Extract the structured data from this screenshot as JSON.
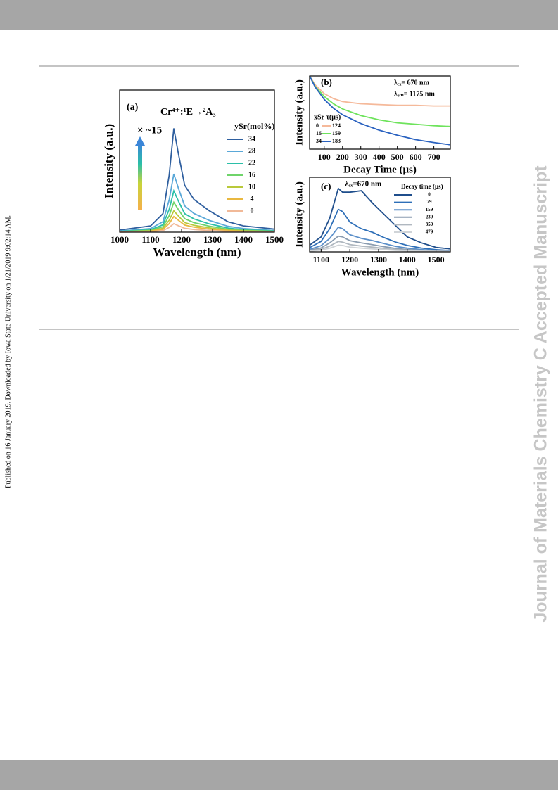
{
  "side_note": "Published on 16 January 2019. Downloaded by Iowa State University on 1/21/2019 9:02:14 AM.",
  "watermark": "Journal of Materials Chemistry C Accepted Manuscript",
  "chart_data": [
    {
      "type": "line",
      "annotations": [
        "(a)",
        "Cr⁴⁺:¹E→²A₃",
        "× ~15"
      ],
      "legend_title": "ySr(mol%)",
      "xlabel": "Wavelength (nm)",
      "ylabel": "Intensity (a.u.)",
      "x": [
        1000,
        1100,
        1140,
        1160,
        1175,
        1190,
        1210,
        1240,
        1290,
        1350,
        1400,
        1500
      ],
      "xlim": [
        1000,
        1500
      ],
      "xticks": [
        1000,
        1100,
        1200,
        1300,
        1400,
        1500
      ],
      "ylim": [
        0,
        100
      ],
      "series": [
        {
          "name": "34",
          "color": "#2f5f9f",
          "values": [
            1.5,
            4.4,
            13,
            40,
            73,
            55,
            33,
            23,
            15,
            7.3,
            4.4,
            2.2
          ]
        },
        {
          "name": "28",
          "color": "#5aa8d8",
          "values": [
            0.8,
            2.5,
            7.4,
            22.6,
            41,
            30.8,
            18.5,
            13.1,
            8.2,
            4.1,
            2.5,
            1.2
          ]
        },
        {
          "name": "22",
          "color": "#2bbfa8",
          "values": [
            0.6,
            1.7,
            5.2,
            16,
            29,
            21.8,
            13,
            9.3,
            5.8,
            2.9,
            1.7,
            0.9
          ]
        },
        {
          "name": "16",
          "color": "#6fd46a",
          "values": [
            0.4,
            1.3,
            3.8,
            11.6,
            21,
            15.8,
            9.5,
            6.7,
            4.2,
            2.1,
            1.3,
            0.6
          ]
        },
        {
          "name": "10",
          "color": "#b9c93a",
          "values": [
            0.3,
            0.9,
            2.7,
            8.3,
            15,
            11.3,
            6.8,
            4.8,
            3,
            1.5,
            0.9,
            0.5
          ]
        },
        {
          "name": "4",
          "color": "#e9b840",
          "values": [
            0.2,
            0.7,
            2,
            6,
            11,
            8.3,
            5,
            3.5,
            2.2,
            1.1,
            0.7,
            0.3
          ]
        },
        {
          "name": "0",
          "color": "#f1b998",
          "values": [
            0.1,
            0.4,
            1.1,
            3.3,
            6,
            4.5,
            2.7,
            1.9,
            1.2,
            0.6,
            0.4,
            0.2
          ]
        }
      ]
    },
    {
      "type": "line",
      "annotations": [
        "(b)",
        "λₑₓ= 670 nm",
        "λₑₘ= 1175 nm"
      ],
      "legend_title": "xSr  τ(μs)",
      "xlabel": "Decay Time (μs)",
      "ylabel": "Intensity (a.u.)",
      "x": [
        20,
        50,
        100,
        150,
        200,
        300,
        400,
        500,
        600,
        700,
        790
      ],
      "xlim": [
        20,
        790
      ],
      "xticks": [
        100,
        200,
        300,
        400,
        500,
        600,
        700
      ],
      "ylim": [
        0,
        100
      ],
      "series": [
        {
          "name": "0",
          "tau": 124,
          "color": "#f5b99a",
          "values": [
            100,
            88,
            76,
            69,
            65,
            62,
            61,
            60,
            60,
            59,
            59
          ]
        },
        {
          "name": "16",
          "tau": 159,
          "color": "#6ee35c",
          "values": [
            100,
            86,
            72,
            62,
            55,
            46,
            40,
            36,
            34,
            32,
            31
          ]
        },
        {
          "name": "34",
          "tau": 183,
          "color": "#2a62c0",
          "values": [
            100,
            85,
            68,
            56,
            47,
            35,
            26,
            19,
            13,
            9,
            6
          ]
        }
      ]
    },
    {
      "type": "line",
      "annotations": [
        "(c)",
        "λₑₓ=670 nm"
      ],
      "legend_title": "Decay time (μs)",
      "xlabel": "Wavelength (nm)",
      "ylabel": "Intensity (a.u.)",
      "x": [
        1060,
        1100,
        1130,
        1160,
        1175,
        1200,
        1240,
        1280,
        1320,
        1360,
        1400,
        1450,
        1500,
        1550
      ],
      "xlim": [
        1060,
        1550
      ],
      "xticks": [
        1100,
        1200,
        1300,
        1400,
        1500
      ],
      "ylim": [
        0,
        100
      ],
      "series": [
        {
          "name": "0",
          "color": "#1f4e8c",
          "values": [
            9,
            20,
            45,
            85,
            80,
            80,
            82,
            65,
            50,
            35,
            20,
            12,
            6,
            4
          ]
        },
        {
          "name": "79",
          "color": "#2e6fb8",
          "values": [
            5.7,
            14,
            31,
            57,
            54,
            40,
            31,
            26,
            19,
            13,
            8.6,
            5.1,
            2.9,
            1.7
          ]
        },
        {
          "name": "159",
          "color": "#5b8fc9",
          "values": [
            3.3,
            8.3,
            18,
            33,
            31,
            23,
            18,
            15,
            11,
            7.3,
            5,
            3,
            1.7,
            1
          ]
        },
        {
          "name": "239",
          "color": "#8a9cb0",
          "values": [
            2.1,
            5.3,
            12,
            21,
            20,
            15,
            12,
            9.5,
            6.9,
            4.6,
            3.2,
            1.9,
            1.1,
            0.6
          ]
        },
        {
          "name": "359",
          "color": "#b0b8c0",
          "values": [
            1.4,
            3.5,
            7.7,
            14,
            13,
            9.8,
            7.7,
            6.3,
            4.6,
            3.1,
            2.1,
            1.3,
            0.7,
            0.4
          ]
        },
        {
          "name": "479",
          "color": "#d0d4d8",
          "values": [
            0.9,
            2.3,
            5,
            9,
            8.6,
            6.3,
            5,
            4,
            3,
            2,
            1.4,
            0.8,
            0.5,
            0.3
          ]
        }
      ]
    }
  ]
}
